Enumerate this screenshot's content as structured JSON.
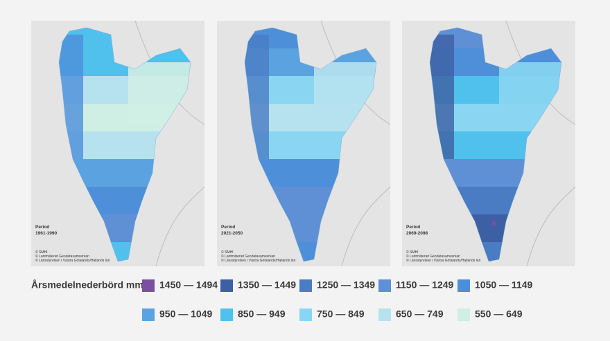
{
  "panels": [
    {
      "period_label": "Period",
      "period": "1961-1990"
    },
    {
      "period_label": "Period",
      "period": "2021-2050"
    },
    {
      "period_label": "Period",
      "period": "2069-2098"
    }
  ],
  "credits": [
    "© SMHI",
    "© Lantmäteriet Geodatasamverkan",
    "© Länsstyrelsen i Västra Götalands/Hallands län"
  ],
  "legend": {
    "title": "Årsmedelnederbörd mm",
    "items": [
      {
        "label": "1450 — 1494",
        "color": "#7b4fa0"
      },
      {
        "label": "1350 — 1449",
        "color": "#3d5fa3"
      },
      {
        "label": "1250 — 1349",
        "color": "#4a7cc4"
      },
      {
        "label": "1150 — 1249",
        "color": "#5f8fd4"
      },
      {
        "label": "1050 — 1149",
        "color": "#4e8fd9"
      },
      {
        "label": "950 — 1049",
        "color": "#5aa3e0"
      },
      {
        "label": "850 — 949",
        "color": "#4fc1ec"
      },
      {
        "label": "750 — 849",
        "color": "#8ad6f2"
      },
      {
        "label": "650 — 749",
        "color": "#b6e2ef"
      },
      {
        "label": "550 — 649",
        "color": "#cfeee4"
      }
    ]
  }
}
